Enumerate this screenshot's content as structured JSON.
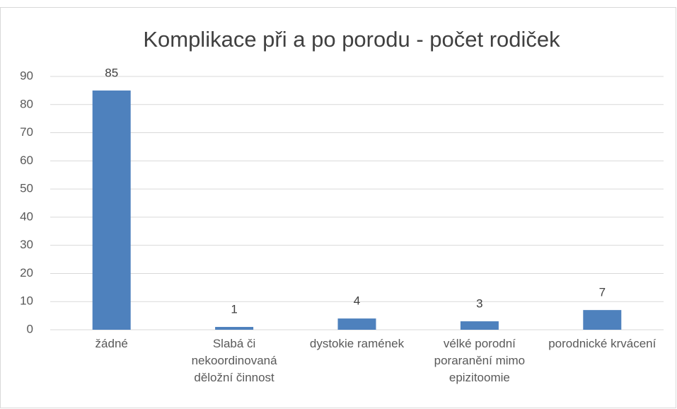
{
  "chart_data": {
    "type": "bar",
    "title": "Komplikace při a po porodu - počet rodiček",
    "categories": [
      "žádné",
      "Slabá či nekoordinovaná děložní činnost",
      "dystokie ramének",
      "vélké porodní poraranění mimo epizitoomie",
      "porodnické krvácení"
    ],
    "values": [
      85,
      1,
      4,
      3,
      7
    ],
    "color": "#4e81bd",
    "ylim": [
      0,
      90
    ],
    "yticks": [
      0,
      10,
      20,
      30,
      40,
      50,
      60,
      70,
      80,
      90
    ],
    "grid": true
  }
}
